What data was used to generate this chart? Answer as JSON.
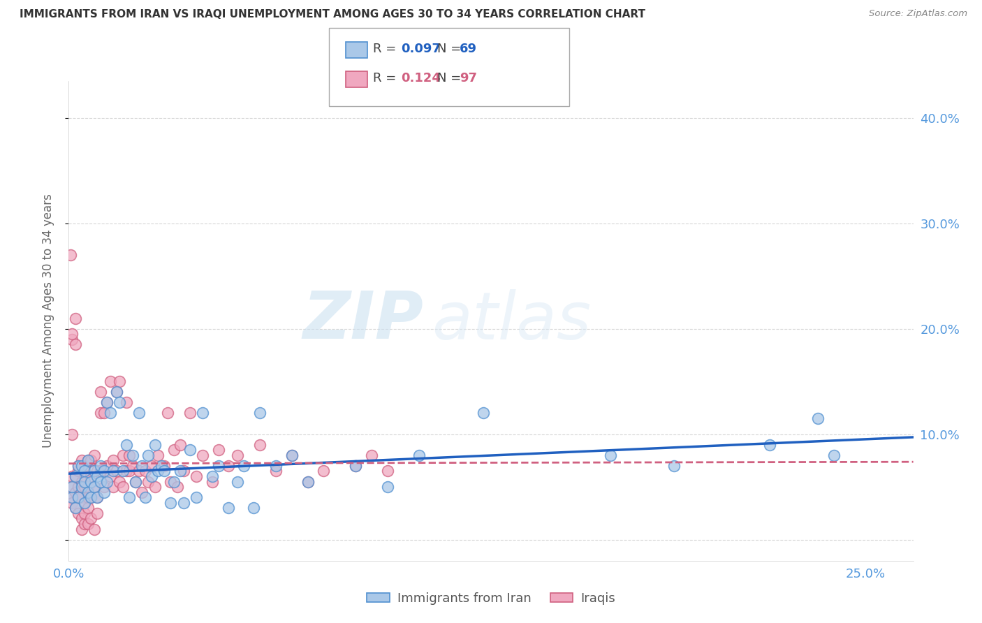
{
  "title": "IMMIGRANTS FROM IRAN VS IRAQI UNEMPLOYMENT AMONG AGES 30 TO 34 YEARS CORRELATION CHART",
  "source": "Source: ZipAtlas.com",
  "ylabel": "Unemployment Among Ages 30 to 34 years",
  "xlim": [
    0.0,
    0.265
  ],
  "ylim": [
    -0.02,
    0.435
  ],
  "watermark_zip": "ZIP",
  "watermark_atlas": "atlas",
  "legend_entry1_label": "Immigrants from Iran",
  "legend_entry2_label": "Iraqis",
  "R1": "0.097",
  "N1": "69",
  "R2": "0.124",
  "N2": "97",
  "line1_color": "#2060c0",
  "line2_color": "#d06080",
  "scatter1_facecolor": "#aac8e8",
  "scatter1_edgecolor": "#5090d0",
  "scatter2_facecolor": "#f0a8c0",
  "scatter2_edgecolor": "#d06080",
  "title_color": "#333333",
  "axis_tick_color": "#5599dd",
  "grid_color": "#cccccc",
  "background_color": "#ffffff",
  "scatter1_x": [
    0.001,
    0.001,
    0.002,
    0.002,
    0.003,
    0.003,
    0.004,
    0.004,
    0.005,
    0.005,
    0.005,
    0.006,
    0.006,
    0.007,
    0.007,
    0.008,
    0.008,
    0.009,
    0.009,
    0.01,
    0.01,
    0.011,
    0.011,
    0.012,
    0.012,
    0.013,
    0.014,
    0.015,
    0.016,
    0.017,
    0.018,
    0.019,
    0.02,
    0.021,
    0.022,
    0.023,
    0.024,
    0.025,
    0.026,
    0.027,
    0.028,
    0.029,
    0.03,
    0.032,
    0.033,
    0.035,
    0.036,
    0.038,
    0.04,
    0.042,
    0.045,
    0.047,
    0.05,
    0.053,
    0.055,
    0.058,
    0.06,
    0.065,
    0.07,
    0.075,
    0.09,
    0.1,
    0.11,
    0.13,
    0.17,
    0.19,
    0.22,
    0.235,
    0.24
  ],
  "scatter1_y": [
    0.04,
    0.05,
    0.03,
    0.06,
    0.04,
    0.07,
    0.05,
    0.07,
    0.035,
    0.055,
    0.065,
    0.045,
    0.075,
    0.055,
    0.04,
    0.065,
    0.05,
    0.06,
    0.04,
    0.055,
    0.07,
    0.045,
    0.065,
    0.13,
    0.055,
    0.12,
    0.065,
    0.14,
    0.13,
    0.065,
    0.09,
    0.04,
    0.08,
    0.055,
    0.12,
    0.07,
    0.04,
    0.08,
    0.06,
    0.09,
    0.065,
    0.07,
    0.065,
    0.035,
    0.055,
    0.065,
    0.035,
    0.085,
    0.04,
    0.12,
    0.06,
    0.07,
    0.03,
    0.055,
    0.07,
    0.03,
    0.12,
    0.07,
    0.08,
    0.055,
    0.07,
    0.05,
    0.08,
    0.12,
    0.08,
    0.07,
    0.09,
    0.115,
    0.08
  ],
  "scatter2_x": [
    0.0005,
    0.001,
    0.001,
    0.001,
    0.002,
    0.002,
    0.002,
    0.003,
    0.003,
    0.003,
    0.003,
    0.004,
    0.004,
    0.004,
    0.005,
    0.005,
    0.005,
    0.005,
    0.006,
    0.006,
    0.006,
    0.007,
    0.007,
    0.007,
    0.008,
    0.008,
    0.009,
    0.009,
    0.01,
    0.01,
    0.01,
    0.011,
    0.011,
    0.012,
    0.012,
    0.013,
    0.013,
    0.014,
    0.014,
    0.015,
    0.015,
    0.016,
    0.016,
    0.017,
    0.017,
    0.018,
    0.018,
    0.019,
    0.019,
    0.02,
    0.021,
    0.022,
    0.023,
    0.024,
    0.025,
    0.026,
    0.027,
    0.028,
    0.03,
    0.031,
    0.032,
    0.033,
    0.034,
    0.035,
    0.036,
    0.038,
    0.04,
    0.042,
    0.045,
    0.047,
    0.05,
    0.053,
    0.06,
    0.065,
    0.07,
    0.075,
    0.08,
    0.09,
    0.095,
    0.1,
    0.0005,
    0.001,
    0.001,
    0.001,
    0.002,
    0.002,
    0.003,
    0.003,
    0.004,
    0.004,
    0.005,
    0.005,
    0.006,
    0.006,
    0.007,
    0.008,
    0.009
  ],
  "scatter2_y": [
    0.04,
    0.05,
    0.035,
    0.06,
    0.045,
    0.06,
    0.03,
    0.05,
    0.065,
    0.04,
    0.07,
    0.055,
    0.04,
    0.075,
    0.05,
    0.06,
    0.035,
    0.07,
    0.05,
    0.075,
    0.04,
    0.06,
    0.04,
    0.075,
    0.05,
    0.08,
    0.065,
    0.04,
    0.12,
    0.065,
    0.14,
    0.12,
    0.05,
    0.13,
    0.07,
    0.15,
    0.06,
    0.075,
    0.05,
    0.14,
    0.065,
    0.15,
    0.055,
    0.08,
    0.05,
    0.13,
    0.065,
    0.08,
    0.065,
    0.07,
    0.055,
    0.065,
    0.045,
    0.065,
    0.055,
    0.07,
    0.05,
    0.08,
    0.07,
    0.12,
    0.055,
    0.085,
    0.05,
    0.09,
    0.065,
    0.12,
    0.06,
    0.08,
    0.055,
    0.085,
    0.07,
    0.08,
    0.09,
    0.065,
    0.08,
    0.055,
    0.065,
    0.07,
    0.08,
    0.065,
    0.27,
    0.19,
    0.195,
    0.1,
    0.21,
    0.185,
    0.04,
    0.025,
    0.02,
    0.01,
    0.015,
    0.025,
    0.015,
    0.03,
    0.02,
    0.01,
    0.025
  ]
}
